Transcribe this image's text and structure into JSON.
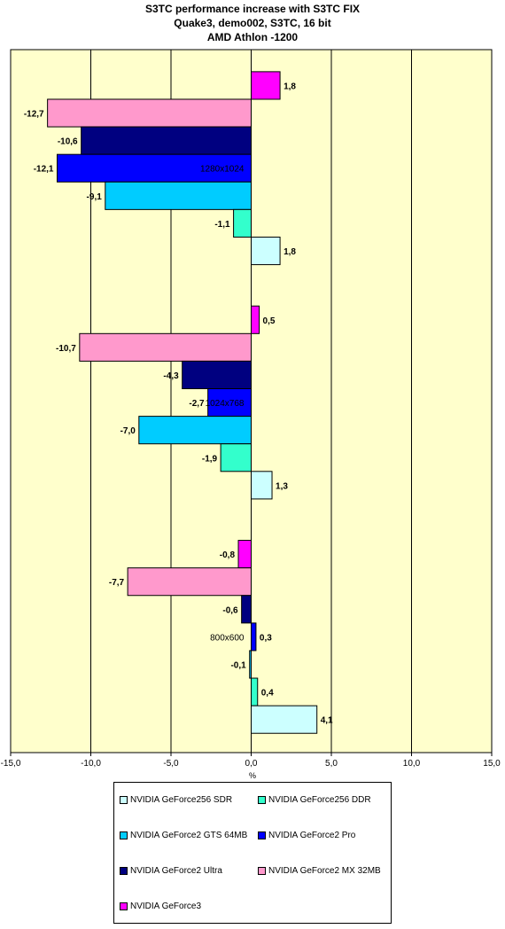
{
  "title_lines": [
    "S3TC performance increase with S3TC FIX",
    "Quake3, demo002, S3TC, 16 bit",
    "AMD Athlon -1200"
  ],
  "chart_data": {
    "type": "bar",
    "orientation": "horizontal",
    "title": "S3TC performance increase with S3TC FIX",
    "xlabel": "%",
    "ylabel": "",
    "xlim": [
      -15,
      15
    ],
    "xticks": [
      "-15,0",
      "-10,0",
      "-5,0",
      "0,0",
      "5,0",
      "10,0",
      "15,0"
    ],
    "grid": true,
    "legend_position": "bottom",
    "categories": [
      "1280x1024",
      "1024x768",
      "800x600"
    ],
    "series": [
      {
        "name": "NVIDIA GeForce3",
        "color": "#ff00ff",
        "values": [
          1.8,
          0.5,
          -0.8
        ],
        "labels": [
          "1,8",
          "0,5",
          "-0,8"
        ]
      },
      {
        "name": "NVIDIA GeForce2 MX 32MB",
        "color": "#ff99cc",
        "values": [
          -12.7,
          -10.7,
          -7.7
        ],
        "labels": [
          "-12,7",
          "-10,7",
          "-7,7"
        ]
      },
      {
        "name": "NVIDIA GeForce2 Ultra",
        "color": "#000080",
        "values": [
          -10.6,
          -4.3,
          -0.6
        ],
        "labels": [
          "-10,6",
          "-4,3",
          "-0,6"
        ]
      },
      {
        "name": "NVIDIA GeForce2 Pro",
        "color": "#0000ff",
        "values": [
          -12.1,
          -2.7,
          0.3
        ],
        "labels": [
          "-12,1",
          "-2,7",
          "0,3"
        ]
      },
      {
        "name": "NVIDIA GeForce2 GTS 64MB",
        "color": "#00ccff",
        "values": [
          -9.1,
          -7.0,
          -0.1
        ],
        "labels": [
          "-9,1",
          "-7,0",
          "-0,1"
        ]
      },
      {
        "name": "NVIDIA GeForce256 DDR",
        "color": "#33ffcc",
        "values": [
          -1.1,
          -1.9,
          0.4
        ],
        "labels": [
          "-1,1",
          "-1,9",
          "0,4"
        ]
      },
      {
        "name": "NVIDIA GeForce256 SDR",
        "color": "#ccffff",
        "values": [
          1.8,
          1.3,
          4.1
        ],
        "labels": [
          "1,8",
          "1,3",
          "4,1"
        ]
      }
    ]
  },
  "legend": [
    {
      "label": "NVIDIA GeForce256 SDR",
      "color": "#ccffff"
    },
    {
      "label": "NVIDIA GeForce256 DDR",
      "color": "#33ffcc"
    },
    {
      "label": "NVIDIA GeForce2 GTS 64MB",
      "color": "#00ccff"
    },
    {
      "label": "NVIDIA GeForce2 Pro",
      "color": "#0000ff"
    },
    {
      "label": "NVIDIA GeForce2 Ultra",
      "color": "#000080"
    },
    {
      "label": "NVIDIA GeForce2 MX 32MB",
      "color": "#ff99cc"
    },
    {
      "label": "NVIDIA GeForce3",
      "color": "#ff00ff"
    }
  ]
}
